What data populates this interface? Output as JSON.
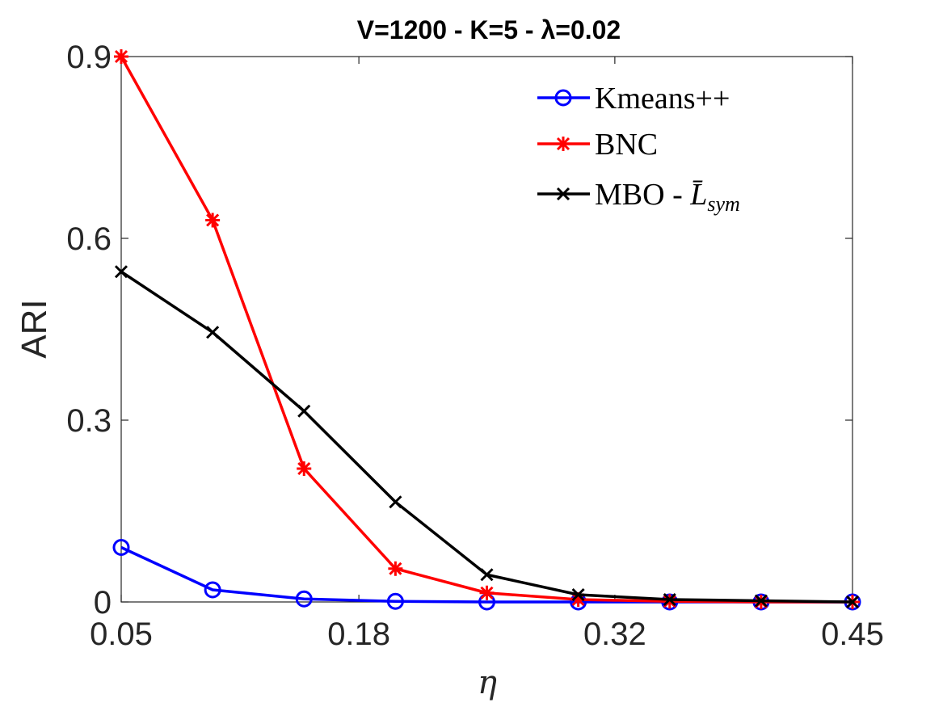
{
  "chart_data": {
    "type": "line",
    "title": "V=1200 - K=5 - λ=0.02",
    "xlabel": "η",
    "ylabel": "ARI",
    "xlim": [
      0.05,
      0.45
    ],
    "ylim": [
      0,
      0.9
    ],
    "xticks": [
      0.05,
      0.18,
      0.32,
      0.45
    ],
    "xtick_labels": [
      "0.05",
      "0.18",
      "0.32",
      "0.45"
    ],
    "yticks": [
      0,
      0.3,
      0.6,
      0.9
    ],
    "ytick_labels": [
      "0",
      "0.3",
      "0.6",
      "0.9"
    ],
    "x": [
      0.05,
      0.1,
      0.15,
      0.2,
      0.25,
      0.3,
      0.35,
      0.4,
      0.45
    ],
    "legend_position": "top-right",
    "series": [
      {
        "name": "Kmeans++",
        "color": "#0000ff",
        "marker": "circle",
        "values": [
          0.09,
          0.02,
          0.005,
          0.001,
          0.0,
          0.0,
          0.0,
          0.0,
          0.0
        ]
      },
      {
        "name": "BNC",
        "color": "#ff0000",
        "marker": "asterisk",
        "values": [
          0.9,
          0.63,
          0.22,
          0.055,
          0.015,
          0.004,
          0.001,
          0.0,
          0.0
        ]
      },
      {
        "name": "MBO - L̄sym",
        "legend_main": "MBO - ",
        "legend_symbol": "L̄",
        "legend_sub": "sym",
        "color": "#000000",
        "marker": "x",
        "values": [
          0.545,
          0.445,
          0.315,
          0.165,
          0.045,
          0.012,
          0.004,
          0.002,
          0.0
        ]
      }
    ]
  }
}
